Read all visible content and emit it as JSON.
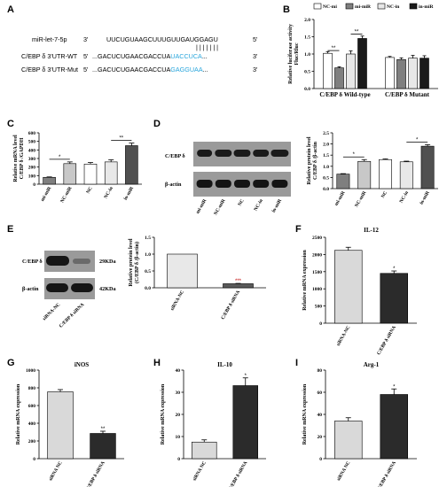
{
  "panels": {
    "A": {
      "label": "A",
      "rows": [
        {
          "name": "miR-let-7-5p",
          "prime_start": "3'",
          "plain": "UUCUGUAAGCUUUGUUGAUGGAGU",
          "colored": "",
          "tail": "",
          "prime_end": "5'"
        },
        {
          "name": "C/EBP δ 3'UTR-WT",
          "prime_start": "5'",
          "plain": "...GACUCUGAACGACCUA",
          "colored": "UACCUCA",
          "tail": "...",
          "prime_end": "3'"
        },
        {
          "name": "C/EBP δ 3'UTR-Mut",
          "prime_start": "5'",
          "plain": "...GACUCUGAACGACCUA",
          "colored": "GAGGUAA",
          "tail": "...",
          "prime_end": "3'"
        }
      ],
      "pair_marks": "| | | | | | |",
      "highlight_color": "#2aa6dc"
    },
    "B": {
      "label": "B"
    },
    "C": {
      "label": "C"
    },
    "D": {
      "label": "D",
      "blot_labels": [
        "C/EBP δ",
        "β-actin"
      ],
      "lanes": [
        "mi-miR",
        "NC-miR",
        "NC",
        "NC-in",
        "in-miR"
      ]
    },
    "E": {
      "label": "E",
      "blot_labels": [
        "C/EBP δ",
        "β-actin"
      ],
      "size_labels": [
        "29KDa",
        "42KDa"
      ],
      "lanes": [
        "siRNA-NC",
        "C/EBP δ siRNA"
      ]
    },
    "F": {
      "label": "F"
    },
    "G": {
      "label": "G"
    },
    "H": {
      "label": "H"
    },
    "I": {
      "label": "I"
    }
  },
  "chart_data": [
    {
      "id": "B",
      "type": "bar",
      "title": "",
      "ylabel": "Relative luciferase activity Fluc/Rluc",
      "ylim": [
        0,
        2.0
      ],
      "yticks": [
        "0.0",
        "0.5",
        "1.0",
        "1.5",
        "2.0"
      ],
      "groups": [
        "C/EBP δ Wild-type",
        "C/EBP δ Mutant"
      ],
      "legend": "top",
      "series": [
        {
          "name": "NC-mi",
          "color": "#ffffff",
          "values": [
            1.02,
            0.9
          ],
          "errors": [
            0.05,
            0.03
          ]
        },
        {
          "name": "mi-miR",
          "color": "#7f7f7f",
          "values": [
            0.6,
            0.84
          ],
          "errors": [
            0.03,
            0.05
          ]
        },
        {
          "name": "NC-in",
          "color": "#e8e8e8",
          "values": [
            1.0,
            0.88
          ],
          "errors": [
            0.09,
            0.08
          ]
        },
        {
          "name": "in-miR",
          "color": "#1a1a1a",
          "values": [
            1.45,
            0.88
          ],
          "errors": [
            0.07,
            0.07
          ]
        }
      ],
      "significance": [
        "**",
        "**"
      ]
    },
    {
      "id": "C",
      "type": "bar",
      "title": "",
      "ylabel": "Relative mRNA level C/EBP δ /GAPDH",
      "ylim": [
        0,
        600
      ],
      "yticks": [
        "0",
        "100",
        "200",
        "300",
        "400",
        "500",
        "600"
      ],
      "categories": [
        "mi-miR",
        "NC-miR",
        "NC",
        "NC-in",
        "in-miR"
      ],
      "values": [
        80,
        240,
        235,
        260,
        450
      ],
      "errors": [
        5,
        20,
        18,
        25,
        30
      ],
      "colors": [
        "#7f7f7f",
        "#c8c8c8",
        "#ffffff",
        "#e8e8e8",
        "#505050"
      ],
      "significance": [
        "*",
        "**"
      ]
    },
    {
      "id": "D",
      "type": "bar",
      "title": "",
      "ylabel": "Relative protein level C/EBP δ /β-actin",
      "ylim": [
        0,
        2.5
      ],
      "yticks": [
        "0.0",
        "0.5",
        "1.0",
        "1.5",
        "2.0",
        "2.5"
      ],
      "categories": [
        "mi-miR",
        "NC-miR",
        "NC",
        "NC-in",
        "in-miR"
      ],
      "values": [
        0.65,
        1.22,
        1.3,
        1.2,
        1.9
      ],
      "errors": [
        0.02,
        0.08,
        0.03,
        0.03,
        0.07
      ],
      "colors": [
        "#7f7f7f",
        "#c8c8c8",
        "#ffffff",
        "#e8e8e8",
        "#505050"
      ],
      "significance": [
        "*",
        "*"
      ]
    },
    {
      "id": "E",
      "type": "bar",
      "title": "",
      "ylabel": "Relative protein level (C/EBP δ /β-actin)",
      "ylim": [
        0,
        1.5
      ],
      "yticks": [
        "0.0",
        "0.5",
        "1.0",
        "1.5"
      ],
      "categories": [
        "siRNA-NC",
        "C/EBP δ siRNA"
      ],
      "values": [
        1.0,
        0.12
      ],
      "errors": [
        0,
        0.01
      ],
      "colors": [
        "#e8e8e8",
        "#5a5a5a"
      ],
      "significance": [
        "***"
      ]
    },
    {
      "id": "F",
      "type": "bar",
      "title": "IL-12",
      "ylabel": "Relative mRNA expression",
      "ylim": [
        0,
        2500
      ],
      "yticks": [
        "0",
        "500",
        "1000",
        "1500",
        "2000",
        "2500"
      ],
      "categories": [
        "siRNA-NC",
        "C/EBP δ siRNA"
      ],
      "values": [
        2120,
        1450
      ],
      "errors": [
        90,
        70
      ],
      "colors": [
        "#d9d9d9",
        "#2b2b2b"
      ],
      "significance": [
        "*"
      ]
    },
    {
      "id": "G",
      "type": "bar",
      "title": "iNOS",
      "ylabel": "Relative mRNA expression",
      "ylim": [
        0,
        1000
      ],
      "yticks": [
        "0",
        "200",
        "400",
        "600",
        "800",
        "1000"
      ],
      "categories": [
        "siRNA NC",
        "C/EBP δ siRNA"
      ],
      "values": [
        755,
        285
      ],
      "errors": [
        25,
        25
      ],
      "colors": [
        "#d9d9d9",
        "#2b2b2b"
      ],
      "significance": [
        "**"
      ]
    },
    {
      "id": "H",
      "type": "bar",
      "title": "IL-10",
      "ylabel": "Relative mRNA expression",
      "ylim": [
        0,
        40
      ],
      "yticks": [
        "0",
        "10",
        "20",
        "30",
        "40"
      ],
      "categories": [
        "siRNA NC",
        "C/EBP δ siRNA"
      ],
      "values": [
        7.5,
        33
      ],
      "errors": [
        1,
        3.5
      ],
      "colors": [
        "#d9d9d9",
        "#2b2b2b"
      ],
      "significance": [
        "*"
      ]
    },
    {
      "id": "I",
      "type": "bar",
      "title": "Arg-1",
      "ylabel": "Relative mRNA expression",
      "ylim": [
        0,
        80
      ],
      "yticks": [
        "0",
        "20",
        "40",
        "60",
        "80"
      ],
      "categories": [
        "siRNA NC",
        "C/EBP δ siRNA"
      ],
      "values": [
        34,
        58
      ],
      "errors": [
        3,
        5
      ],
      "colors": [
        "#d9d9d9",
        "#2b2b2b"
      ],
      "significance": [
        "*"
      ]
    }
  ]
}
